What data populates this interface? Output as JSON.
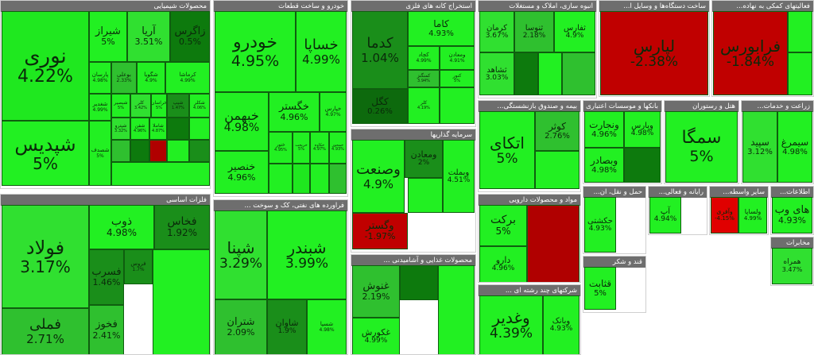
{
  "sectors": [
    {
      "title": "محصولات شیمیایی",
      "cells": [
        {
          "name": "نوری",
          "pct": "4.22%",
          "color": "#1fe81f"
        },
        {
          "name": "شپدیس",
          "pct": "5%",
          "color": "#22f022"
        },
        {
          "name": "شیراز",
          "pct": "5%",
          "color": "#22f022"
        },
        {
          "name": "آریا",
          "pct": "3.51%",
          "color": "#30e030"
        },
        {
          "name": "زاگرس",
          "pct": "0.5%",
          "color": "#0d7a0d"
        },
        {
          "name": "پارسان",
          "pct": "4.98%",
          "color": "#22f022"
        },
        {
          "name": "بوعلی",
          "pct": "2.33%",
          "color": "#2fc02f"
        },
        {
          "name": "شگویا",
          "pct": "4.9%",
          "color": "#22f022"
        },
        {
          "name": "کرماشا",
          "pct": "4.99%",
          "color": "#22f022"
        },
        {
          "name": "شغدیر",
          "pct": "4.99%",
          "color": "#22f022"
        },
        {
          "name": "شصدف",
          "pct": "5%",
          "color": "#22f022"
        },
        {
          "name": "شبصیر",
          "pct": "5%",
          "color": "#22f022"
        },
        {
          "name": "کلر",
          "pct": "3.42%",
          "color": "#30e030"
        },
        {
          "name": "خراسان",
          "pct": "5%",
          "color": "#22f022"
        },
        {
          "name": "شیپ",
          "pct": "1.47%",
          "color": "#1a8e1a"
        },
        {
          "name": "شکلر",
          "pct": "4.06%",
          "color": "#22f022"
        },
        {
          "name": "شپترو",
          "pct": "3.32%",
          "color": "#30e030"
        },
        {
          "name": "شفن",
          "pct": "4.96%",
          "color": "#22f022"
        },
        {
          "name": "شاملا",
          "pct": "4.87%",
          "color": "#22f022"
        },
        {
          "name": "",
          "pct": "",
          "color": "#0d7a0d"
        },
        {
          "name": "",
          "pct": "",
          "color": "#22f022"
        },
        {
          "name": "",
          "pct": "",
          "color": "#2fc02f"
        },
        {
          "name": "",
          "pct": "",
          "color": "#0d7a0d"
        },
        {
          "name": "",
          "pct": "",
          "color": "#b00000"
        },
        {
          "name": "",
          "pct": "",
          "color": "#22f022"
        },
        {
          "name": "",
          "pct": "",
          "color": "#1a8e1a"
        },
        {
          "name": "",
          "pct": "",
          "color": "#22f022"
        }
      ]
    },
    {
      "title": "خودرو و ساخت قطعات",
      "cells": [
        {
          "name": "خودرو",
          "pct": "4.95%",
          "color": "#22f022"
        },
        {
          "name": "خساپا",
          "pct": "4.99%",
          "color": "#22f022"
        },
        {
          "name": "خبهمن",
          "pct": "4.98%",
          "color": "#22f022"
        },
        {
          "name": "خگستر",
          "pct": "4.96%",
          "color": "#22f022"
        },
        {
          "name": "خپارس",
          "pct": "4.97%",
          "color": "#22f022"
        },
        {
          "name": "خنصیر",
          "pct": "4.96%",
          "color": "#22f022"
        },
        {
          "name": "ختور",
          "pct": "4.95%",
          "color": "#22f022"
        },
        {
          "name": "خریخت",
          "pct": "5%",
          "color": "#22f022"
        },
        {
          "name": "خکاوه",
          "pct": "4.97%",
          "color": "#22f022"
        },
        {
          "name": "خمحور",
          "pct": "4.93%",
          "color": "#22f022"
        },
        {
          "name": "",
          "pct": "",
          "color": "#22f022"
        },
        {
          "name": "",
          "pct": "",
          "color": "#1fe81f"
        },
        {
          "name": "",
          "pct": "",
          "color": "#22f022"
        },
        {
          "name": "",
          "pct": "",
          "color": "#2fc02f"
        }
      ]
    },
    {
      "title": "استخراج کانه های فلزی",
      "cells": [
        {
          "name": "کدما",
          "pct": "1.04%",
          "color": "#1a8e1a"
        },
        {
          "name": "کگل",
          "pct": "0.26%",
          "color": "#0d6a0d"
        },
        {
          "name": "کاما",
          "pct": "4.93%",
          "color": "#22f022"
        },
        {
          "name": "کچاد",
          "pct": "4.99%",
          "color": "#22f022"
        },
        {
          "name": "ومعادن",
          "pct": "4.91%",
          "color": "#22f022"
        },
        {
          "name": "کمنگنز",
          "pct": "3.94%",
          "color": "#2fc02f"
        },
        {
          "name": "کنور",
          "pct": "5%",
          "color": "#22f022"
        },
        {
          "name": "کلر",
          "pct": "4.19%",
          "color": "#22f022"
        },
        {
          "name": "",
          "pct": "",
          "color": "#22f022"
        }
      ]
    },
    {
      "title": "انبوه سازی، املاک و مستغلات",
      "cells": [
        {
          "name": "کرمان",
          "pct": "3.67%",
          "color": "#30e030"
        },
        {
          "name": "ثنوسا",
          "pct": "2.18%",
          "color": "#2fc02f"
        },
        {
          "name": "ثفارس",
          "pct": "4.9%",
          "color": "#22f022"
        },
        {
          "name": "ثشاهد",
          "pct": "3.03%",
          "color": "#30e030"
        },
        {
          "name": "",
          "pct": "",
          "color": "#0d7a0d"
        },
        {
          "name": "",
          "pct": "",
          "color": "#22f022"
        },
        {
          "name": "",
          "pct": "",
          "color": "#2fc02f"
        }
      ]
    },
    {
      "title": "ساخت دستگاه‌ها و وسایل ا...",
      "cells": [
        {
          "name": "لپارس",
          "pct": "-2.38%",
          "color": "#c00000"
        }
      ]
    },
    {
      "title": "فعالیتهای کمکی به نهاده...",
      "cells": [
        {
          "name": "فرابورس",
          "pct": "-1.84%",
          "color": "#c00000"
        },
        {
          "name": "",
          "pct": "",
          "color": "#22f022"
        },
        {
          "name": "",
          "pct": "",
          "color": "#22f022"
        }
      ]
    },
    {
      "title": "بیمه و صندوق بازنشستگی...",
      "cells": [
        {
          "name": "اتکای",
          "pct": "5%",
          "color": "#22f022"
        },
        {
          "name": "کوثر",
          "pct": "2.76%",
          "color": "#2fc02f"
        },
        {
          "name": "",
          "pct": "",
          "color": "#22f022"
        }
      ]
    },
    {
      "title": "بانکها و موسسات اعتباری",
      "cells": [
        {
          "name": "ونجارت",
          "pct": "4.96%",
          "color": "#22f022"
        },
        {
          "name": "وپارس",
          "pct": "4.98%",
          "color": "#22f022"
        },
        {
          "name": "وبصادر",
          "pct": "4.98%",
          "color": "#22f022"
        },
        {
          "name": "",
          "pct": "",
          "color": "#0d7a0d"
        }
      ]
    },
    {
      "title": "هتل و رستوران",
      "cells": [
        {
          "name": "سمگا",
          "pct": "5%",
          "color": "#22f022"
        }
      ]
    },
    {
      "title": "زراعت و خدمات...",
      "cells": [
        {
          "name": "سپید",
          "pct": "3.12%",
          "color": "#30e030"
        },
        {
          "name": "سیمرغ",
          "pct": "4.98%",
          "color": "#22f022"
        }
      ]
    },
    {
      "title": "فلزات اساسی",
      "cells": [
        {
          "name": "فولاد",
          "pct": "3.17%",
          "color": "#30e030"
        },
        {
          "name": "فملی",
          "pct": "2.71%",
          "color": "#2fc02f"
        },
        {
          "name": "ذوب",
          "pct": "4.98%",
          "color": "#22f022"
        },
        {
          "name": "فخاس",
          "pct": "1.92%",
          "color": "#1a8e1a"
        },
        {
          "name": "فسرب",
          "pct": "1.46%",
          "color": "#1a8e1a"
        },
        {
          "name": "فخوز",
          "pct": "2.41%",
          "color": "#2fc02f"
        },
        {
          "name": "فروس",
          "pct": "1.7%",
          "color": "#1a8e1a"
        },
        {
          "name": "",
          "pct": "",
          "color": "#22f022"
        }
      ]
    },
    {
      "title": "فراورده های نفتی، کک و سوخت ...",
      "cells": [
        {
          "name": "شپنا",
          "pct": "3.29%",
          "color": "#30e030"
        },
        {
          "name": "شبندر",
          "pct": "3.99%",
          "color": "#22f022"
        },
        {
          "name": "شتران",
          "pct": "2.09%",
          "color": "#2fc02f"
        },
        {
          "name": "شاوان",
          "pct": "1.9%",
          "color": "#1a8e1a"
        },
        {
          "name": "شسپا",
          "pct": "4.98%",
          "color": "#22f022"
        }
      ]
    },
    {
      "title": "سرمایه گذاریها",
      "cells": [
        {
          "name": "وصنعت",
          "pct": "4.9%",
          "color": "#22f022"
        },
        {
          "name": "ومعادن",
          "pct": "2%",
          "color": "#1a8e1a"
        },
        {
          "name": "وبملت",
          "pct": "4.51%",
          "color": "#22f022"
        },
        {
          "name": "وگستر",
          "pct": "-1.97%",
          "color": "#c00000"
        },
        {
          "name": "",
          "pct": "",
          "color": "#22f022"
        }
      ]
    },
    {
      "title": "محصولات غذایی و آشامیدنی ...",
      "cells": [
        {
          "name": "غنوش",
          "pct": "2.19%",
          "color": "#2fc02f"
        },
        {
          "name": "غکورش",
          "pct": "4.99%",
          "color": "#22f022"
        },
        {
          "name": "",
          "pct": "",
          "color": "#0d7a0d"
        },
        {
          "name": "",
          "pct": "",
          "color": "#22f022"
        }
      ]
    },
    {
      "title": "مواد و محصولات دارویی",
      "cells": [
        {
          "name": "برکت",
          "pct": "5%",
          "color": "#22f022"
        },
        {
          "name": "دارو",
          "pct": "4.96%",
          "color": "#22f022"
        },
        {
          "name": "",
          "pct": "",
          "color": "#b00000"
        }
      ]
    },
    {
      "title": "شرکتهای چند رشته ای ...",
      "cells": [
        {
          "name": "وغدیر",
          "pct": "4.39%",
          "color": "#22f022"
        },
        {
          "name": "وبانک",
          "pct": "4.93%",
          "color": "#22f022"
        }
      ]
    },
    {
      "title": "قند و شکر",
      "cells": [
        {
          "name": "قثابت",
          "pct": "5%",
          "color": "#22f022"
        }
      ]
    },
    {
      "title": "حمل و نقل، ان...",
      "cells": [
        {
          "name": "حکشتی",
          "pct": "4.93%",
          "color": "#22f022"
        }
      ]
    },
    {
      "title": "رایانه و فعالی...",
      "cells": [
        {
          "name": "آپ",
          "pct": "4.94%",
          "color": "#22f022"
        }
      ]
    },
    {
      "title": "سایر واسطه...",
      "cells": [
        {
          "name": "وآفری",
          "pct": "-4.15%",
          "color": "#e00000"
        },
        {
          "name": "ولساپا",
          "pct": "4.99%",
          "color": "#22f022"
        }
      ]
    },
    {
      "title": "اطلاعات...",
      "cells": [
        {
          "name": "های وب",
          "pct": "4.93%",
          "color": "#22f022"
        }
      ]
    },
    {
      "title": "مخابرات",
      "cells": [
        {
          "name": "همراه",
          "pct": "3.47%",
          "color": "#30e030"
        }
      ]
    }
  ]
}
